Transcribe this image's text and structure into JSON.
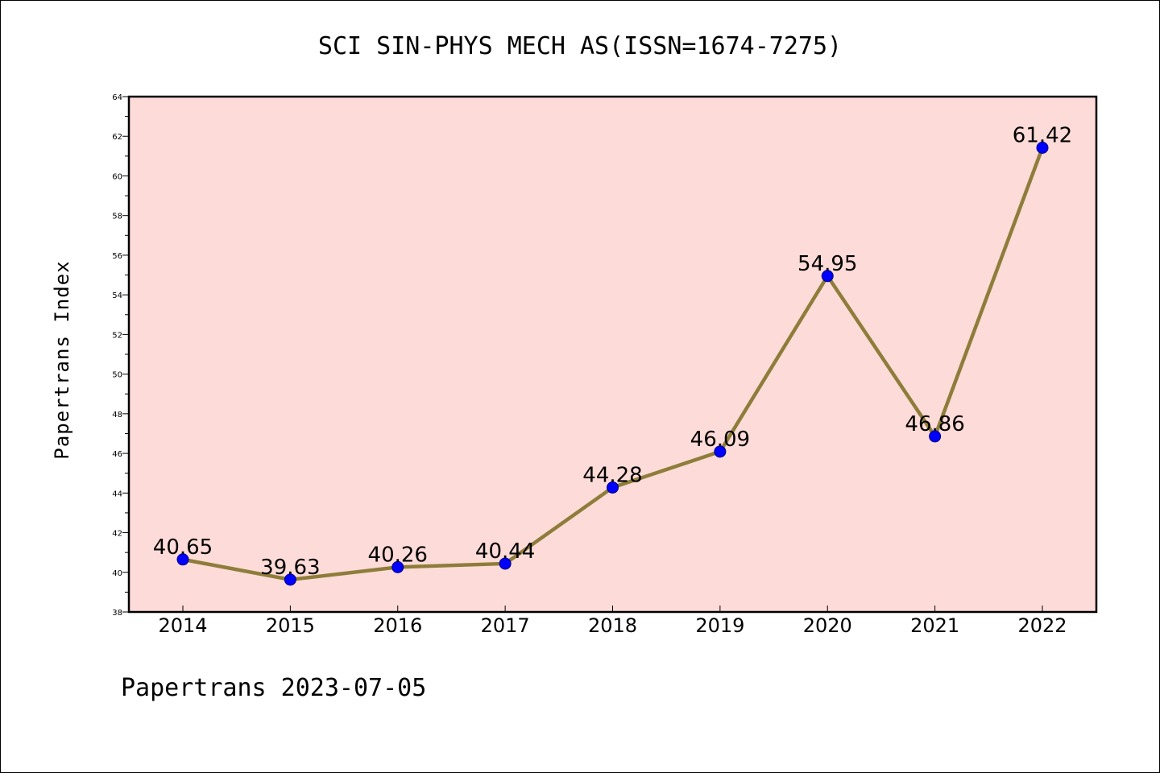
{
  "chart_data": {
    "type": "line",
    "title": "SCI SIN-PHYS MECH AS(ISSN=1674-7275)",
    "ylabel": "Papertrans Index",
    "xlabel": "",
    "footer": "Papertrans 2023-07-05",
    "categories": [
      "2014",
      "2015",
      "2016",
      "2017",
      "2018",
      "2019",
      "2020",
      "2021",
      "2022"
    ],
    "values": [
      40.65,
      39.63,
      40.26,
      40.44,
      44.28,
      46.09,
      54.95,
      46.86,
      61.42
    ],
    "value_labels": [
      "40.65",
      "39.63",
      "40.26",
      "40.44",
      "44.28",
      "46.09",
      "54.95",
      "46.86",
      "61.42"
    ],
    "ylim": [
      38,
      64
    ],
    "yticks": [
      "38",
      "40",
      "42",
      "44",
      "46",
      "48",
      "50",
      "52",
      "54",
      "56",
      "58",
      "60",
      "62",
      "64"
    ],
    "ytick_values": [
      38,
      40,
      42,
      44,
      46,
      48,
      50,
      52,
      54,
      56,
      58,
      60,
      62,
      64
    ],
    "grid": false,
    "colors": {
      "plot_background": "#fddbd8",
      "line": "#8e7d3a",
      "marker": "#0000ff",
      "marker_edge": "#000080"
    }
  }
}
